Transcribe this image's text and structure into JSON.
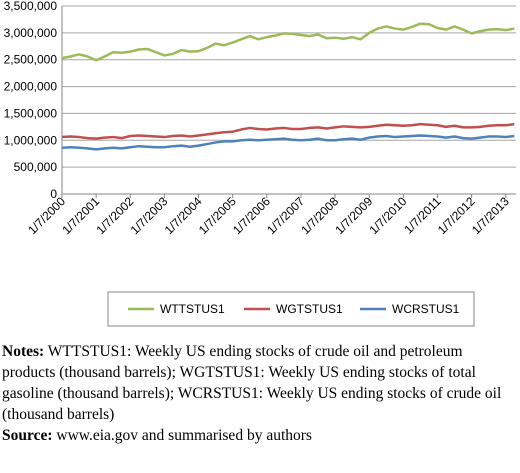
{
  "chart_data": {
    "type": "line",
    "x": [
      2000,
      2000.25,
      2000.5,
      2000.75,
      2001,
      2001.25,
      2001.5,
      2001.75,
      2002,
      2002.25,
      2002.5,
      2002.75,
      2003,
      2003.25,
      2003.5,
      2003.75,
      2004,
      2004.25,
      2004.5,
      2004.75,
      2005,
      2005.25,
      2005.5,
      2005.75,
      2006,
      2006.25,
      2006.5,
      2006.75,
      2007,
      2007.25,
      2007.5,
      2007.75,
      2008,
      2008.25,
      2008.5,
      2008.75,
      2009,
      2009.25,
      2009.5,
      2009.75,
      2010,
      2010.25,
      2010.5,
      2010.75,
      2011,
      2011.25,
      2011.5,
      2011.75,
      2012,
      2012.25,
      2012.5,
      2012.75,
      2013,
      2013.25
    ],
    "series": [
      {
        "name": "WTTSTUS1",
        "color": "#9bbb59",
        "values": [
          2530000,
          2560000,
          2600000,
          2560000,
          2490000,
          2560000,
          2640000,
          2630000,
          2650000,
          2690000,
          2700000,
          2640000,
          2580000,
          2610000,
          2680000,
          2650000,
          2660000,
          2720000,
          2800000,
          2770000,
          2820000,
          2880000,
          2940000,
          2880000,
          2920000,
          2950000,
          2990000,
          2980000,
          2960000,
          2940000,
          2970000,
          2900000,
          2910000,
          2890000,
          2920000,
          2880000,
          3000000,
          3080000,
          3120000,
          3080000,
          3060000,
          3110000,
          3170000,
          3160000,
          3090000,
          3060000,
          3120000,
          3060000,
          2990000,
          3030000,
          3060000,
          3070000,
          3050000,
          3080000
        ]
      },
      {
        "name": "WGTSTUS1",
        "color": "#c0504d",
        "values": [
          1060000,
          1070000,
          1060000,
          1040000,
          1030000,
          1050000,
          1060000,
          1040000,
          1080000,
          1090000,
          1080000,
          1070000,
          1060000,
          1080000,
          1090000,
          1070000,
          1090000,
          1110000,
          1130000,
          1150000,
          1160000,
          1200000,
          1230000,
          1210000,
          1200000,
          1220000,
          1230000,
          1210000,
          1210000,
          1230000,
          1240000,
          1220000,
          1240000,
          1260000,
          1250000,
          1240000,
          1250000,
          1270000,
          1290000,
          1280000,
          1270000,
          1280000,
          1300000,
          1290000,
          1280000,
          1250000,
          1270000,
          1240000,
          1240000,
          1250000,
          1270000,
          1280000,
          1280000,
          1300000
        ]
      },
      {
        "name": "WCRSTUS1",
        "color": "#4f81bd",
        "values": [
          860000,
          870000,
          860000,
          850000,
          830000,
          850000,
          860000,
          850000,
          870000,
          890000,
          880000,
          870000,
          870000,
          890000,
          900000,
          880000,
          900000,
          930000,
          960000,
          980000,
          980000,
          1000000,
          1010000,
          1000000,
          1010000,
          1020000,
          1030000,
          1010000,
          1000000,
          1010000,
          1030000,
          1000000,
          1000000,
          1020000,
          1030000,
          1010000,
          1050000,
          1070000,
          1080000,
          1060000,
          1070000,
          1080000,
          1090000,
          1080000,
          1070000,
          1050000,
          1070000,
          1040000,
          1030000,
          1050000,
          1070000,
          1070000,
          1060000,
          1080000
        ]
      }
    ],
    "xlim": [
      2000,
      2013.3
    ],
    "xticks": [
      {
        "value": 2000,
        "label": "1/7/2000"
      },
      {
        "value": 2001,
        "label": "1/7/2001"
      },
      {
        "value": 2002,
        "label": "1/7/2002"
      },
      {
        "value": 2003,
        "label": "1/7/2003"
      },
      {
        "value": 2004,
        "label": "1/7/2004"
      },
      {
        "value": 2005,
        "label": "1/7/2005"
      },
      {
        "value": 2006,
        "label": "1/7/2006"
      },
      {
        "value": 2007,
        "label": "1/7/2007"
      },
      {
        "value": 2008,
        "label": "1/7/2008"
      },
      {
        "value": 2009,
        "label": "1/7/2009"
      },
      {
        "value": 2010,
        "label": "1/7/2010"
      },
      {
        "value": 2011,
        "label": "1/7/2011"
      },
      {
        "value": 2012,
        "label": "1/7/2012"
      },
      {
        "value": 2013,
        "label": "1/7/2013"
      }
    ],
    "ylim": [
      0,
      3500000
    ],
    "yticks": [
      0,
      {
        "value": 500000,
        "label": "500,000"
      },
      {
        "value": 1000000,
        "label": "1,000,000"
      },
      {
        "value": 1500000,
        "label": "1,500,000"
      },
      {
        "value": 2000000,
        "label": "2,000,000"
      },
      {
        "value": 2500000,
        "label": "2,500,000"
      },
      {
        "value": 3000000,
        "label": "3,000,000"
      },
      {
        "value": 3500000,
        "label": "3,500,000"
      }
    ],
    "grid": true,
    "legend": "bottom"
  },
  "notes": {
    "label": "Notes:",
    "text": "WTTSTUS1: Weekly US ending stocks of crude oil and petroleum products (thousand barrels); WGTSTUS1: Weekly US ending stocks of total gasoline (thousand barrels); WCRSTUS1: Weekly US ending stocks of crude oil (thousand barrels)"
  },
  "source": {
    "label": "Source:",
    "text": "www.eia.gov and summarised by authors"
  }
}
